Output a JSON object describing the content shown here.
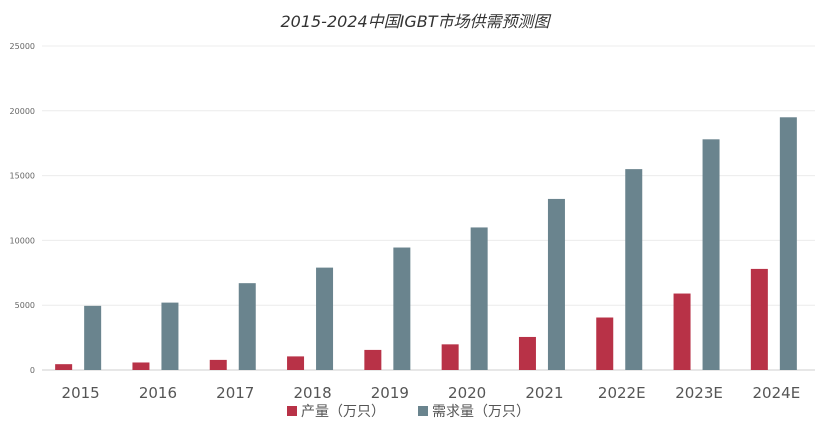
{
  "chart_data": {
    "type": "bar",
    "title": "2015-2024中国IGBT市场供需预测图",
    "categories": [
      "2015",
      "2016",
      "2017",
      "2018",
      "2019",
      "2020",
      "2021",
      "2022E",
      "2023E",
      "2024E"
    ],
    "series": [
      {
        "name": "产量（万只）",
        "color": "#b83247",
        "values": [
          450,
          580,
          780,
          1050,
          1550,
          1980,
          2550,
          4050,
          5900,
          7800
        ]
      },
      {
        "name": "需求量（万只）",
        "color": "#6a848e",
        "values": [
          4950,
          5200,
          6700,
          7900,
          9450,
          11000,
          13200,
          15500,
          17800,
          19500
        ]
      }
    ],
    "ylim": [
      0,
      25000
    ],
    "yticks": [
      0,
      5000,
      10000,
      15000,
      20000,
      25000
    ],
    "ytick_labels": [
      "0",
      "5000",
      "10000",
      "15000",
      "20000",
      "25000"
    ],
    "grid": true,
    "legend": "bottom-center",
    "xlabel": "",
    "ylabel": ""
  }
}
